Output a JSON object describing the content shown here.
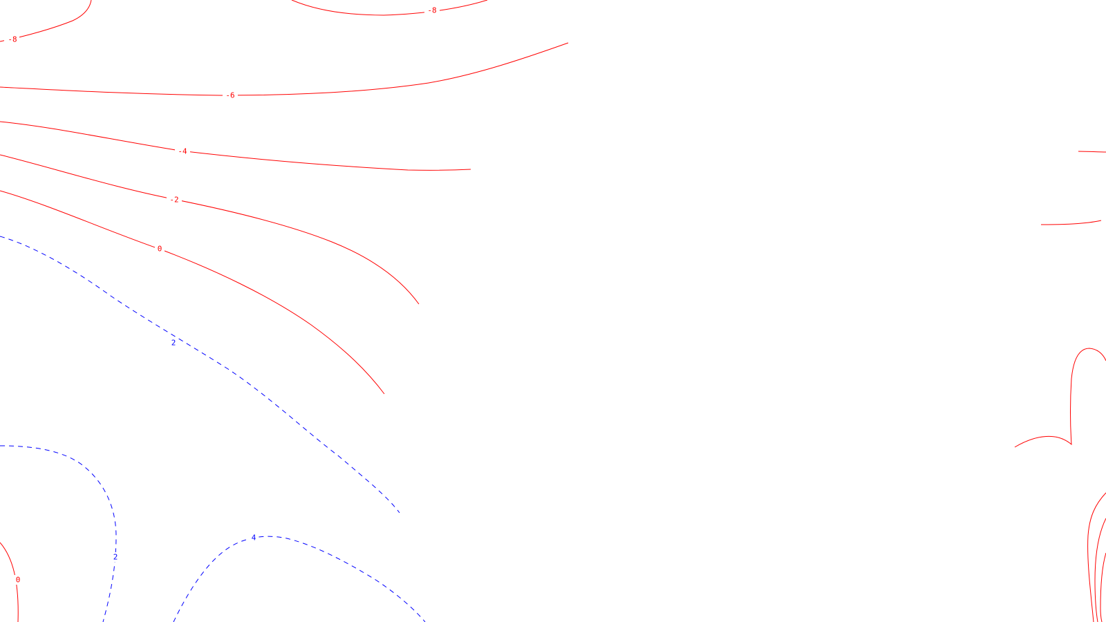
{
  "chart_data": {
    "type": "contour",
    "title": "",
    "xlabel": "",
    "ylabel": "",
    "grid": false,
    "legend": "none",
    "colors": {
      "negative_and_zero": "#ff0000",
      "positive": "#0000ff"
    },
    "line_styles": {
      "negative_and_zero": "solid",
      "positive": "dashed"
    },
    "contour_levels": [
      -8,
      -6,
      -4,
      -2,
      0,
      2,
      4
    ],
    "level_labels": [
      {
        "level": -8,
        "text": "-8"
      },
      {
        "level": -8,
        "text": "-8"
      },
      {
        "level": -6,
        "text": "-6"
      },
      {
        "level": -4,
        "text": "-4"
      },
      {
        "level": -2,
        "text": "-2"
      },
      {
        "level": 0,
        "text": "0"
      },
      {
        "level": 0,
        "text": "0"
      },
      {
        "level": 2,
        "text": "2"
      },
      {
        "level": 2,
        "text": "2"
      },
      {
        "level": 4,
        "text": "4"
      }
    ]
  }
}
